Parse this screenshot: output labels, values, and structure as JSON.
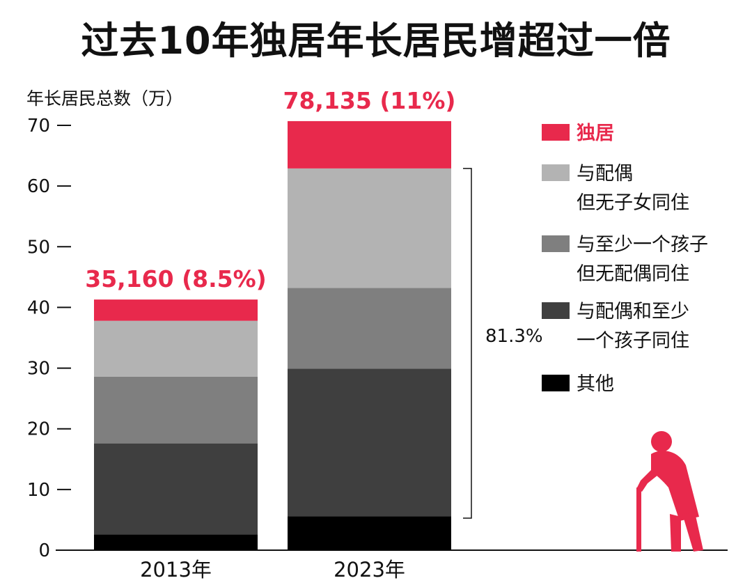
{
  "title": "过去10年独居年长居民增超过一倍",
  "chart_data": {
    "type": "bar",
    "stacked": true,
    "y_title": "年长居民总数（万）",
    "ylim": [
      0,
      70
    ],
    "yticks": [
      0,
      10,
      20,
      30,
      40,
      50,
      60,
      70
    ],
    "categories": [
      "2013年",
      "2023年"
    ],
    "series": [
      {
        "name": "其他",
        "color": "#000000",
        "values": [
          2.6,
          5.6
        ]
      },
      {
        "name": "与配偶和至少一个孩子同住",
        "color": "#3f3f3f",
        "values": [
          15.0,
          24.3
        ]
      },
      {
        "name": "与至少一个孩子但无配偶同住",
        "color": "#7f7f7f",
        "values": [
          11.0,
          13.3
        ]
      },
      {
        "name": "与配偶但无子女同住",
        "color": "#b3b3b3",
        "values": [
          9.2,
          19.7
        ]
      },
      {
        "name": "独居",
        "color": "#e8294c",
        "values": [
          3.5,
          7.8
        ]
      }
    ],
    "bar_totals": [
      "35,160 (8.5%)",
      "78,135 (11%)"
    ],
    "bracket_label": "81.3%",
    "legend_placement": "right"
  },
  "legend": [
    {
      "lines": [
        "独居"
      ],
      "color": "#e8294c",
      "highlight": true
    },
    {
      "lines": [
        "与配偶",
        "但无子女同住"
      ],
      "color": "#b3b3b3",
      "highlight": false
    },
    {
      "lines": [
        "与至少一个孩子",
        "但无配偶同住"
      ],
      "color": "#7f7f7f",
      "highlight": false
    },
    {
      "lines": [
        "与配偶和至少",
        "一个孩子同住"
      ],
      "color": "#3f3f3f",
      "highlight": false
    },
    {
      "lines": [
        "其他"
      ],
      "color": "#000000",
      "highlight": false
    }
  ],
  "icon": "elderly-person-with-cane-icon"
}
